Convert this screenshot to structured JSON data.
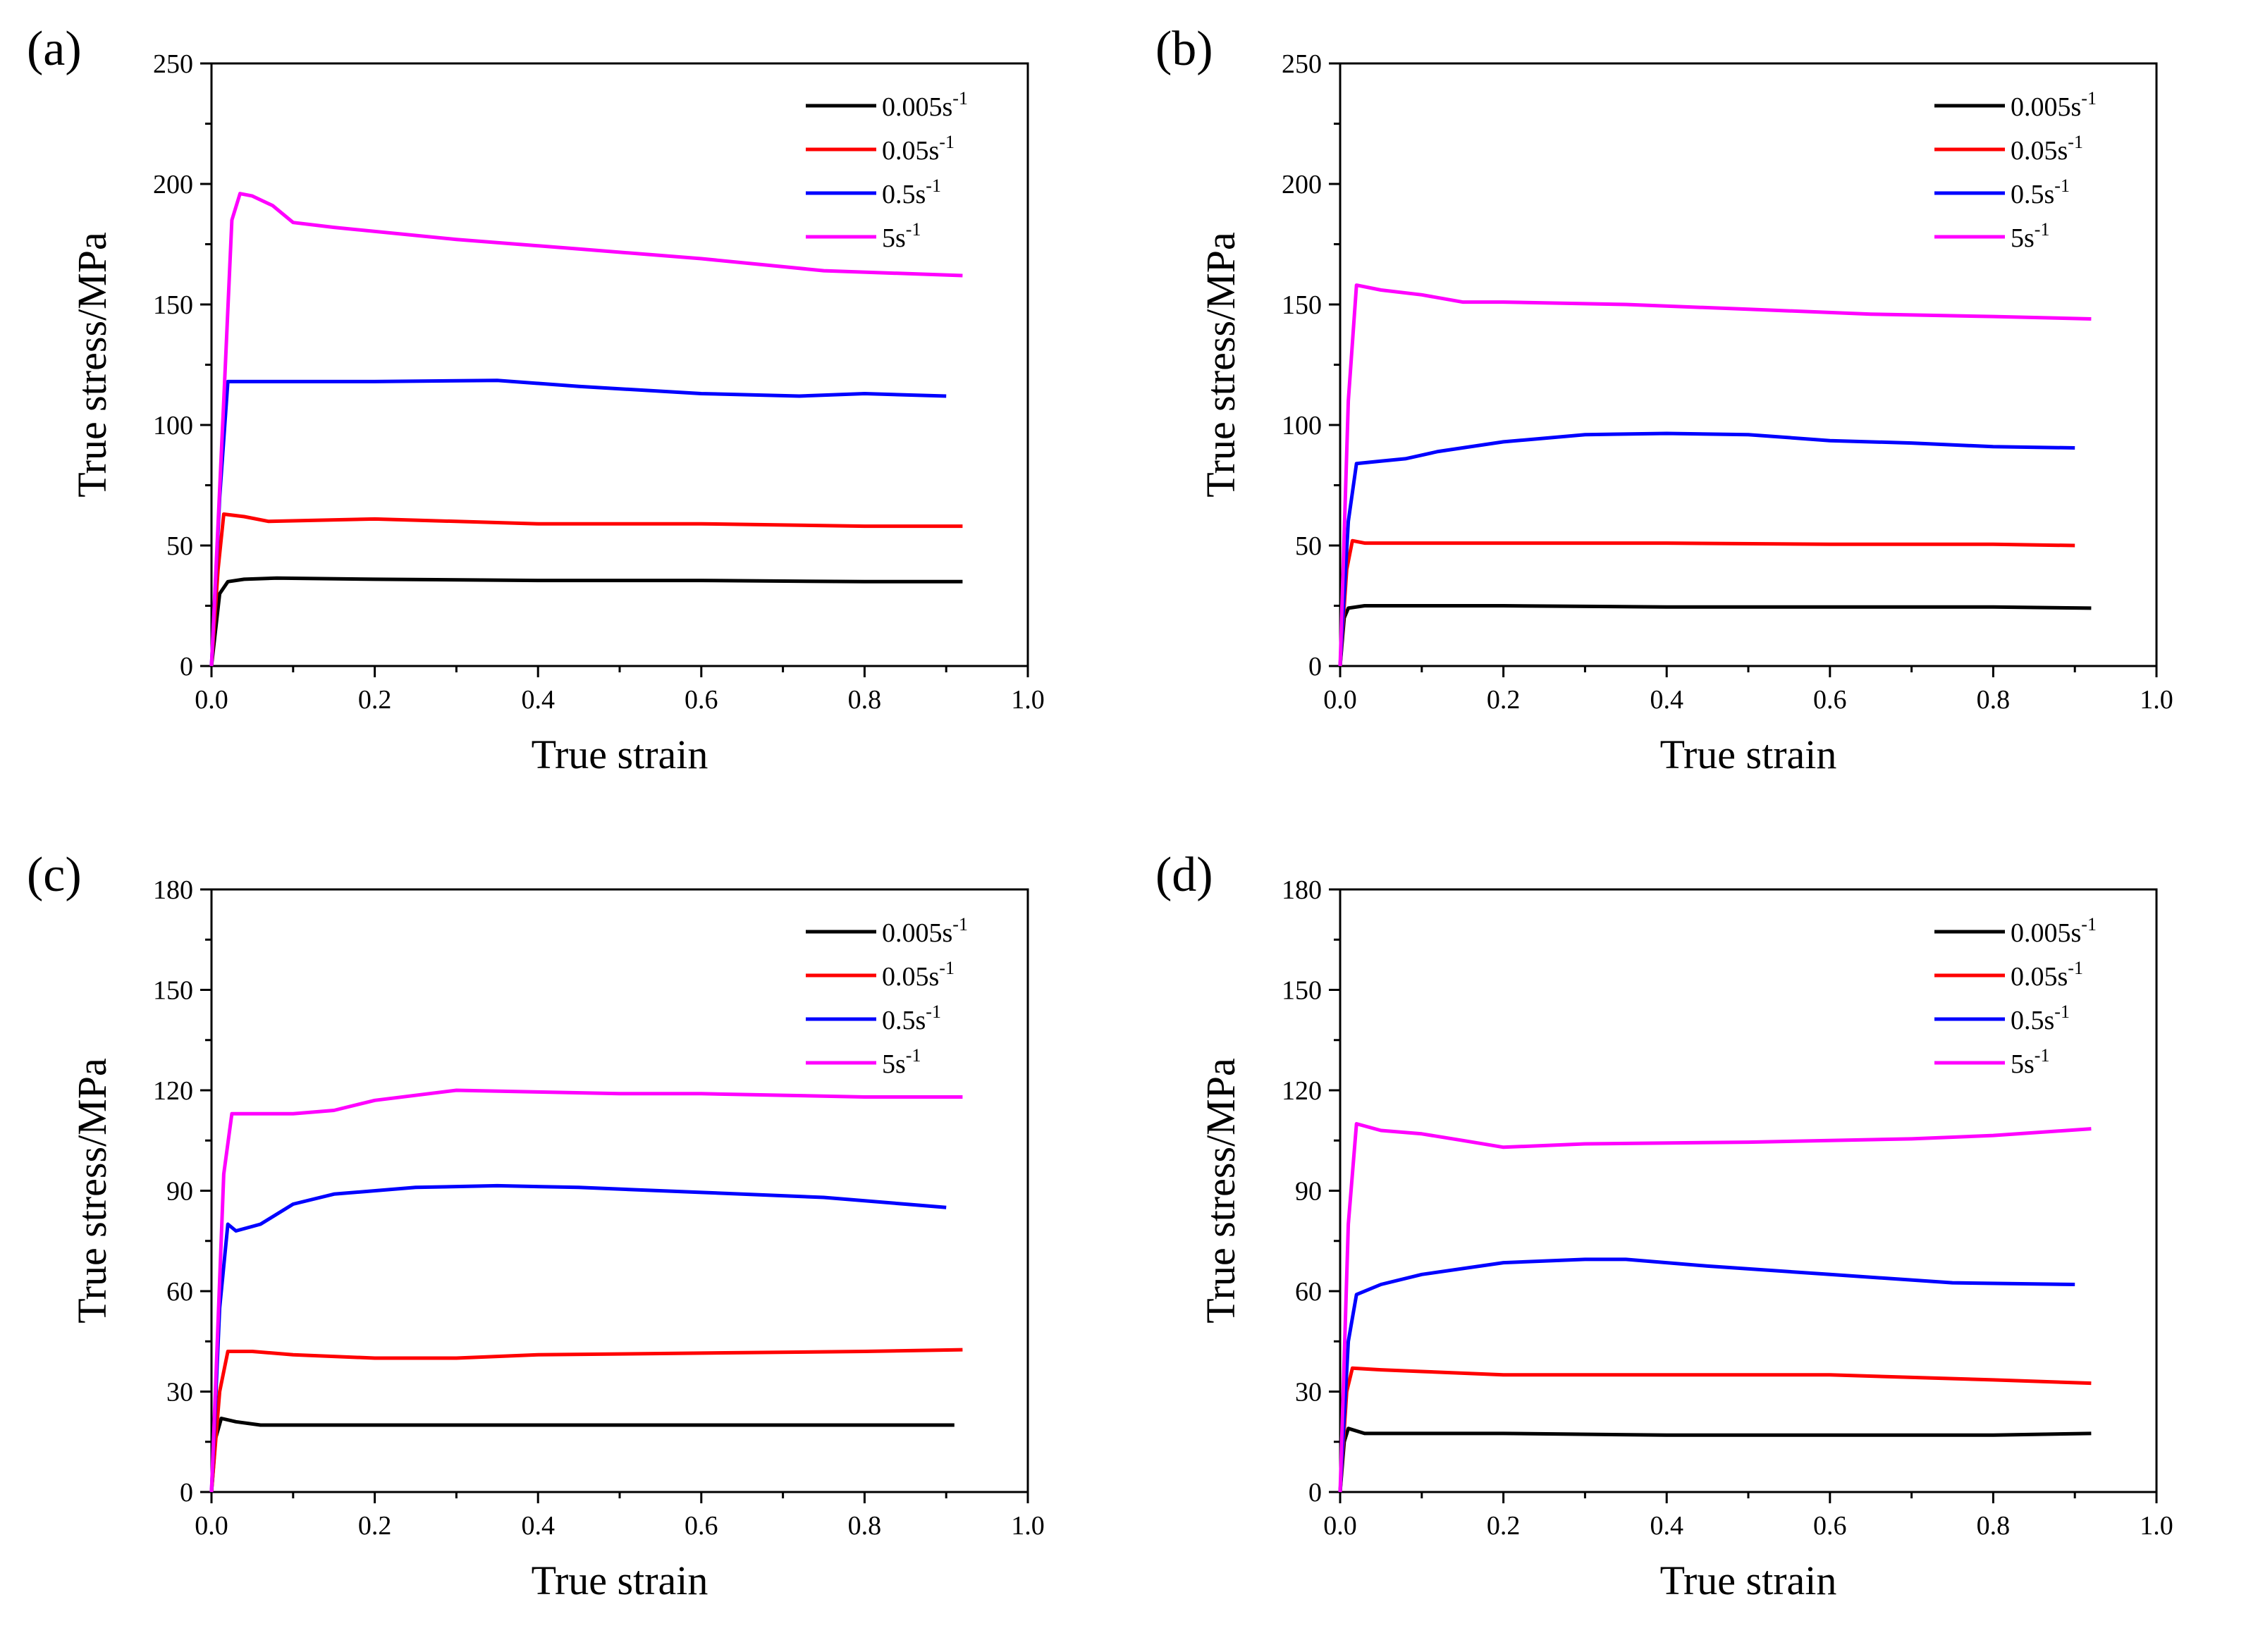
{
  "chart_data": [
    {
      "type": "line",
      "panel_label": "(a)",
      "xlabel": "True strain",
      "ylabel": "True stress/MPa",
      "xlim": [
        0,
        1.0
      ],
      "ylim": [
        0,
        250
      ],
      "xticks": [
        "0.0",
        "0.2",
        "0.4",
        "0.6",
        "0.8",
        "1.0"
      ],
      "yticks": [
        "0",
        "50",
        "100",
        "150",
        "200",
        "250"
      ],
      "legend_position": "top-right",
      "series": [
        {
          "name": "0.005s",
          "superscript": "-1",
          "color": "#000000",
          "x": [
            0,
            0.01,
            0.02,
            0.04,
            0.08,
            0.2,
            0.4,
            0.6,
            0.8,
            0.92
          ],
          "y": [
            0,
            30,
            35,
            36,
            36.5,
            36,
            35.5,
            35.5,
            35,
            35
          ]
        },
        {
          "name": "0.05s",
          "superscript": "-1",
          "color": "#ff0000",
          "x": [
            0,
            0.008,
            0.015,
            0.04,
            0.07,
            0.2,
            0.4,
            0.6,
            0.8,
            0.92
          ],
          "y": [
            0,
            40,
            63,
            62,
            60,
            61,
            59,
            59,
            58,
            58
          ]
        },
        {
          "name": "0.5s",
          "superscript": "-1",
          "color": "#0000ff",
          "x": [
            0,
            0.01,
            0.02,
            0.05,
            0.1,
            0.2,
            0.35,
            0.45,
            0.6,
            0.72,
            0.8,
            0.9
          ],
          "y": [
            0,
            70,
            118,
            118,
            118,
            118,
            118.5,
            116,
            113,
            112,
            113,
            112
          ]
        },
        {
          "name": "5s",
          "superscript": "-1",
          "color": "#ff00ff",
          "x": [
            0,
            0.015,
            0.025,
            0.035,
            0.05,
            0.075,
            0.1,
            0.15,
            0.3,
            0.45,
            0.6,
            0.75,
            0.92
          ],
          "y": [
            0,
            110,
            185,
            196,
            195,
            191,
            184,
            182,
            177,
            173,
            169,
            164,
            162
          ]
        }
      ]
    },
    {
      "type": "line",
      "panel_label": "(b)",
      "xlabel": "True strain",
      "ylabel": "True stress/MPa",
      "xlim": [
        0,
        1.0
      ],
      "ylim": [
        0,
        250
      ],
      "xticks": [
        "0.0",
        "0.2",
        "0.4",
        "0.6",
        "0.8",
        "1.0"
      ],
      "yticks": [
        "0",
        "50",
        "100",
        "150",
        "200",
        "250"
      ],
      "legend_position": "top-right",
      "series": [
        {
          "name": "0.005s",
          "superscript": "-1",
          "color": "#000000",
          "x": [
            0,
            0.005,
            0.01,
            0.03,
            0.2,
            0.4,
            0.6,
            0.8,
            0.92
          ],
          "y": [
            0,
            20,
            24,
            25,
            25,
            24.5,
            24.5,
            24.5,
            24
          ]
        },
        {
          "name": "0.05s",
          "superscript": "-1",
          "color": "#ff0000",
          "x": [
            0,
            0.008,
            0.015,
            0.03,
            0.2,
            0.4,
            0.6,
            0.8,
            0.9
          ],
          "y": [
            0,
            40,
            52,
            51,
            51,
            51,
            50.5,
            50.5,
            50
          ]
        },
        {
          "name": "0.5s",
          "superscript": "-1",
          "color": "#0000ff",
          "x": [
            0,
            0.01,
            0.02,
            0.05,
            0.08,
            0.12,
            0.2,
            0.3,
            0.4,
            0.5,
            0.6,
            0.7,
            0.8,
            0.9
          ],
          "y": [
            0,
            60,
            84,
            85,
            86,
            89,
            93,
            96,
            96.5,
            96,
            93.5,
            92.5,
            91,
            90.5
          ]
        },
        {
          "name": "5s",
          "superscript": "-1",
          "color": "#ff00ff",
          "x": [
            0,
            0.01,
            0.02,
            0.05,
            0.1,
            0.15,
            0.2,
            0.35,
            0.5,
            0.65,
            0.8,
            0.92
          ],
          "y": [
            0,
            110,
            158,
            156,
            154,
            151,
            151,
            150,
            148,
            146,
            145,
            144
          ]
        }
      ]
    },
    {
      "type": "line",
      "panel_label": "(c)",
      "xlabel": "True strain",
      "ylabel": "True stress/MPa",
      "xlim": [
        0,
        1.0
      ],
      "ylim": [
        0,
        180
      ],
      "xticks": [
        "0.0",
        "0.2",
        "0.4",
        "0.6",
        "0.8",
        "1.0"
      ],
      "yticks": [
        "0",
        "30",
        "60",
        "90",
        "120",
        "150",
        "180"
      ],
      "legend_position": "top-right",
      "series": [
        {
          "name": "0.005s",
          "superscript": "-1",
          "color": "#000000",
          "x": [
            0,
            0.005,
            0.012,
            0.03,
            0.06,
            0.2,
            0.4,
            0.6,
            0.8,
            0.91
          ],
          "y": [
            0,
            16,
            22,
            21,
            20,
            20,
            20,
            20,
            20,
            20
          ]
        },
        {
          "name": "0.05s",
          "superscript": "-1",
          "color": "#ff0000",
          "x": [
            0,
            0.01,
            0.02,
            0.05,
            0.1,
            0.2,
            0.3,
            0.4,
            0.6,
            0.8,
            0.92
          ],
          "y": [
            0,
            30,
            42,
            42,
            41,
            40,
            40,
            41,
            41.5,
            42,
            42.5
          ]
        },
        {
          "name": "0.5s",
          "superscript": "-1",
          "color": "#0000ff",
          "x": [
            0,
            0.01,
            0.02,
            0.03,
            0.06,
            0.1,
            0.15,
            0.25,
            0.35,
            0.45,
            0.6,
            0.75,
            0.85,
            0.9
          ],
          "y": [
            0,
            55,
            80,
            78,
            80,
            86,
            89,
            91,
            91.5,
            91,
            89.5,
            88,
            86,
            85
          ]
        },
        {
          "name": "5s",
          "superscript": "-1",
          "color": "#ff00ff",
          "x": [
            0,
            0.015,
            0.025,
            0.1,
            0.15,
            0.2,
            0.3,
            0.4,
            0.5,
            0.6,
            0.7,
            0.8,
            0.92
          ],
          "y": [
            0,
            95,
            113,
            113,
            114,
            117,
            120,
            119.5,
            119,
            119,
            118.5,
            118,
            118
          ]
        }
      ]
    },
    {
      "type": "line",
      "panel_label": "(d)",
      "xlabel": "True strain",
      "ylabel": "True stress/MPa",
      "xlim": [
        0,
        1.0
      ],
      "ylim": [
        0,
        180
      ],
      "xticks": [
        "0.0",
        "0.2",
        "0.4",
        "0.6",
        "0.8",
        "1.0"
      ],
      "yticks": [
        "0",
        "30",
        "60",
        "90",
        "120",
        "150",
        "180"
      ],
      "legend_position": "top-right",
      "series": [
        {
          "name": "0.005s",
          "superscript": "-1",
          "color": "#000000",
          "x": [
            0,
            0.005,
            0.01,
            0.03,
            0.2,
            0.4,
            0.6,
            0.8,
            0.92
          ],
          "y": [
            0,
            15,
            19,
            17.5,
            17.5,
            17,
            17,
            17,
            17.5
          ]
        },
        {
          "name": "0.05s",
          "superscript": "-1",
          "color": "#ff0000",
          "x": [
            0,
            0.008,
            0.015,
            0.05,
            0.1,
            0.2,
            0.4,
            0.6,
            0.8,
            0.92
          ],
          "y": [
            0,
            30,
            37,
            36.5,
            36,
            35,
            35,
            35,
            33.5,
            32.5
          ]
        },
        {
          "name": "0.5s",
          "superscript": "-1",
          "color": "#0000ff",
          "x": [
            0,
            0.01,
            0.02,
            0.05,
            0.1,
            0.2,
            0.3,
            0.35,
            0.45,
            0.6,
            0.75,
            0.9
          ],
          "y": [
            0,
            45,
            59,
            62,
            65,
            68.5,
            69.5,
            69.5,
            67.5,
            65,
            62.5,
            62
          ]
        },
        {
          "name": "5s",
          "superscript": "-1",
          "color": "#ff00ff",
          "x": [
            0,
            0.01,
            0.02,
            0.05,
            0.1,
            0.15,
            0.2,
            0.3,
            0.5,
            0.7,
            0.8,
            0.92
          ],
          "y": [
            0,
            80,
            110,
            108,
            107,
            105,
            103,
            104,
            104.5,
            105.5,
            106.5,
            108.5
          ]
        }
      ]
    }
  ]
}
